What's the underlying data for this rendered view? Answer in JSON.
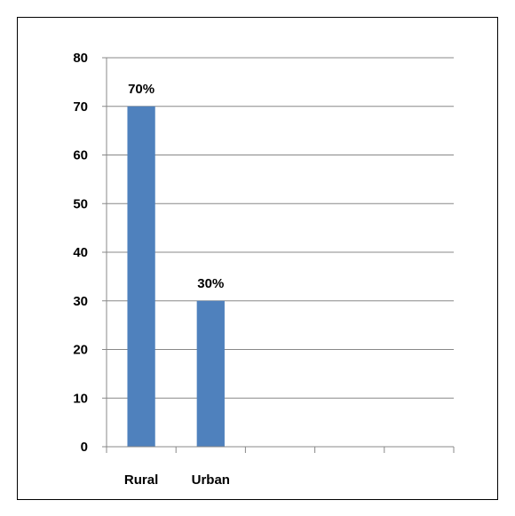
{
  "chart_data": {
    "type": "bar",
    "categories": [
      "Rural",
      "Urban",
      "",
      "",
      ""
    ],
    "values": [
      70,
      30,
      null,
      null,
      null
    ],
    "data_labels": [
      "70%",
      "30%",
      "",
      "",
      ""
    ],
    "title": "",
    "xlabel": "",
    "ylabel": "",
    "ylim": [
      0,
      80
    ],
    "yticks": [
      0,
      10,
      20,
      30,
      40,
      50,
      60,
      70,
      80
    ],
    "grid": true,
    "legend": "none",
    "colors": {
      "bar": "#4F81BD",
      "grid": "#888888",
      "axis": "#888888"
    }
  }
}
